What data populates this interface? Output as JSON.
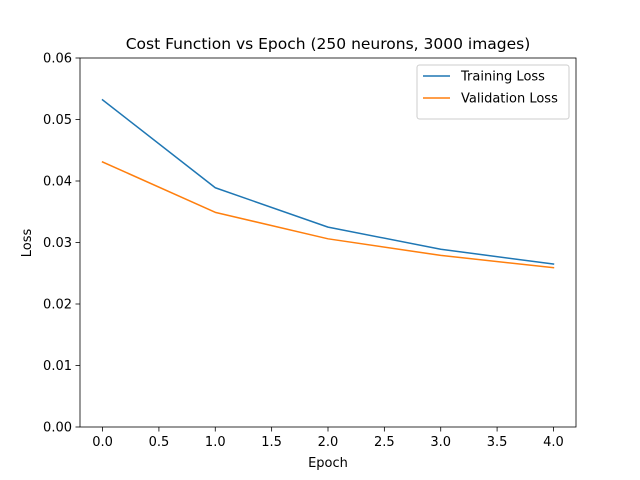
{
  "chart_data": {
    "type": "line",
    "title": "Cost Function vs Epoch (250 neurons, 3000 images)",
    "xlabel": "Epoch",
    "ylabel": "Loss",
    "x": [
      0,
      1,
      2,
      3,
      4
    ],
    "series": [
      {
        "name": "Training Loss",
        "color": "#1f77b4",
        "values": [
          0.0532,
          0.0389,
          0.0325,
          0.0289,
          0.0265
        ]
      },
      {
        "name": "Validation Loss",
        "color": "#ff7f0e",
        "values": [
          0.0431,
          0.0349,
          0.0306,
          0.0279,
          0.0259
        ]
      }
    ],
    "xlim": [
      -0.2,
      4.2
    ],
    "ylim": [
      0,
      0.06
    ],
    "xticks": [
      0.0,
      0.5,
      1.0,
      1.5,
      2.0,
      2.5,
      3.0,
      3.5,
      4.0
    ],
    "xtick_labels": [
      "0.0",
      "0.5",
      "1.0",
      "1.5",
      "2.0",
      "2.5",
      "3.0",
      "3.5",
      "4.0"
    ],
    "yticks": [
      0.0,
      0.01,
      0.02,
      0.03,
      0.04,
      0.05,
      0.06
    ],
    "ytick_labels": [
      "0.00",
      "0.01",
      "0.02",
      "0.03",
      "0.04",
      "0.05",
      "0.06"
    ],
    "grid": false,
    "legend": "top-right"
  }
}
